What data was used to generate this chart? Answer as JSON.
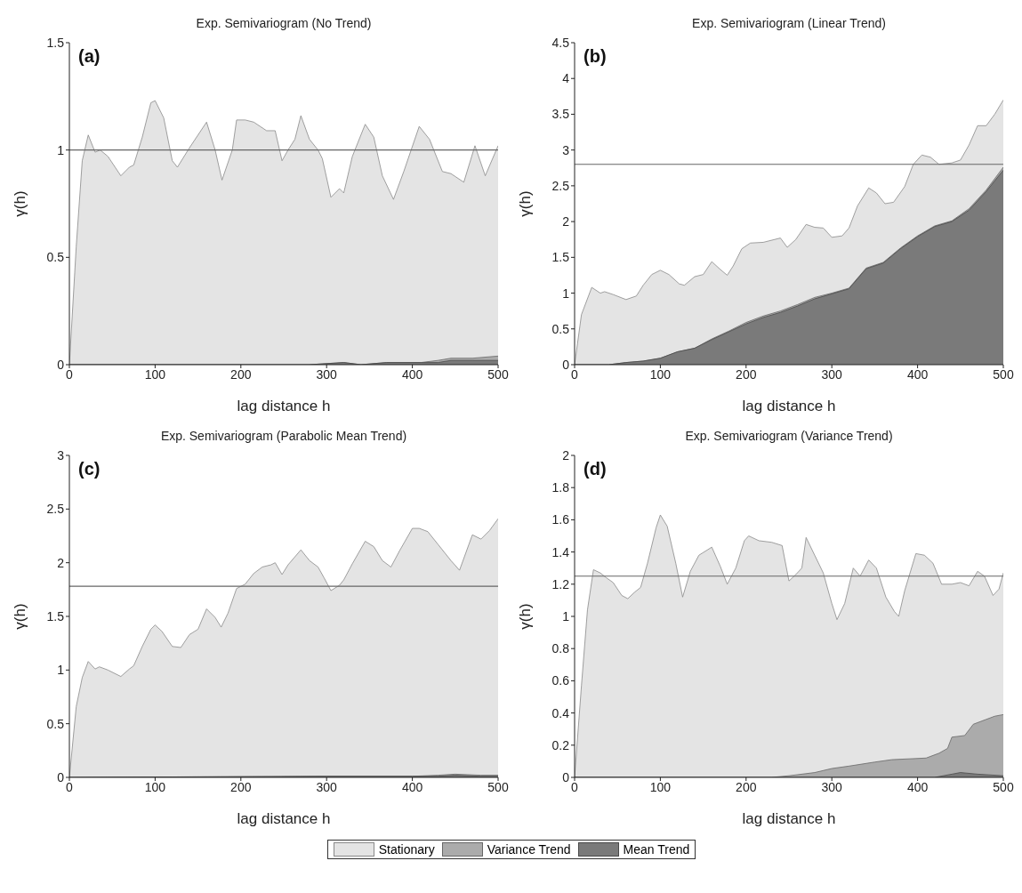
{
  "chart_data": [
    {
      "type": "area",
      "title": "Exp. Semivariogram (No Trend)",
      "xlabel": "lag distance h",
      "ylabel": "γ(h)",
      "annotations": [
        "(a)"
      ],
      "xlim": [
        0,
        500
      ],
      "xticks": [
        0,
        100,
        200,
        300,
        400,
        500
      ],
      "ylim": [
        0,
        1.5
      ],
      "yticks": [
        0,
        0.5,
        1,
        1.5
      ],
      "legend": "bottom",
      "marker": "none",
      "ref_lines": [
        {
          "axis": "y",
          "value": 1,
          "color": "#666666"
        }
      ],
      "series": [
        {
          "name": "Stationary",
          "color": "#e4e4e4",
          "x": [
            0,
            8,
            15,
            22,
            30,
            36,
            45,
            60,
            70,
            75,
            85,
            95,
            100,
            110,
            120,
            126,
            140,
            160,
            170,
            178,
            190,
            195,
            205,
            215,
            230,
            240,
            248,
            255,
            263,
            270,
            280,
            290,
            295,
            305,
            315,
            320,
            330,
            345,
            355,
            365,
            378,
            390,
            408,
            420,
            435,
            445,
            460,
            473,
            485,
            500
          ],
          "values": [
            0,
            0.55,
            0.95,
            1.07,
            0.99,
            1.0,
            0.97,
            0.88,
            0.92,
            0.93,
            1.06,
            1.22,
            1.23,
            1.15,
            0.95,
            0.92,
            1.01,
            1.13,
            1.0,
            0.86,
            1.0,
            1.14,
            1.14,
            1.13,
            1.09,
            1.09,
            0.95,
            1.0,
            1.05,
            1.16,
            1.05,
            1.0,
            0.96,
            0.78,
            0.82,
            0.8,
            0.97,
            1.12,
            1.06,
            0.88,
            0.77,
            0.9,
            1.11,
            1.05,
            0.9,
            0.89,
            0.85,
            1.02,
            0.88,
            1.02
          ]
        },
        {
          "name": "Variance Trend",
          "color": "#ababab",
          "x": [
            0,
            280,
            320,
            340,
            370,
            410,
            430,
            445,
            470,
            500
          ],
          "values": [
            0,
            0,
            0.01,
            0,
            0.01,
            0.01,
            0.02,
            0.03,
            0.03,
            0.04
          ]
        },
        {
          "name": "Mean Trend",
          "color": "#7a7a7a",
          "x": [
            0,
            280,
            320,
            340,
            370,
            410,
            430,
            445,
            470,
            500
          ],
          "values": [
            0,
            0,
            0.01,
            0,
            0.01,
            0.01,
            0.01,
            0.02,
            0.02,
            0.02
          ]
        }
      ]
    },
    {
      "type": "area",
      "title": "Exp. Semivariogram (Linear Trend)",
      "xlabel": "lag distance h",
      "ylabel": "γ(h)",
      "annotations": [
        "(b)"
      ],
      "xlim": [
        0,
        500
      ],
      "xticks": [
        0,
        100,
        200,
        300,
        400,
        500
      ],
      "ylim": [
        0,
        4.5
      ],
      "yticks": [
        0,
        0.5,
        1,
        1.5,
        2,
        2.5,
        3,
        3.5,
        4,
        4.5
      ],
      "legend": "bottom",
      "marker": "none",
      "ref_lines": [
        {
          "axis": "y",
          "value": 2.8,
          "color": "#666666"
        }
      ],
      "series": [
        {
          "name": "Stationary",
          "color": "#e4e4e4",
          "x": [
            0,
            8,
            20,
            30,
            35,
            45,
            60,
            72,
            80,
            90,
            100,
            110,
            122,
            128,
            140,
            150,
            160,
            170,
            178,
            185,
            195,
            205,
            220,
            240,
            248,
            258,
            270,
            280,
            290,
            300,
            312,
            320,
            330,
            343,
            352,
            362,
            372,
            385,
            395,
            405,
            415,
            425,
            440,
            450,
            460,
            470,
            480,
            490,
            500
          ],
          "values": [
            0,
            0.7,
            1.08,
            1.0,
            1.02,
            0.98,
            0.91,
            0.96,
            1.11,
            1.26,
            1.32,
            1.26,
            1.13,
            1.11,
            1.23,
            1.26,
            1.44,
            1.33,
            1.25,
            1.38,
            1.62,
            1.7,
            1.71,
            1.77,
            1.64,
            1.75,
            1.96,
            1.92,
            1.91,
            1.78,
            1.8,
            1.91,
            2.22,
            2.47,
            2.4,
            2.25,
            2.27,
            2.49,
            2.8,
            2.93,
            2.9,
            2.8,
            2.82,
            2.86,
            3.07,
            3.34,
            3.34,
            3.5,
            3.7
          ]
        },
        {
          "name": "Variance Trend",
          "color": "#ababab",
          "x": [
            0,
            40,
            60,
            80,
            100,
            120,
            140,
            160,
            180,
            200,
            220,
            240,
            260,
            280,
            300,
            320,
            340,
            360,
            380,
            400,
            420,
            440,
            460,
            480,
            500
          ],
          "values": [
            0,
            0,
            0.03,
            0.05,
            0.09,
            0.18,
            0.23,
            0.36,
            0.47,
            0.59,
            0.68,
            0.75,
            0.84,
            0.94,
            1.0,
            1.07,
            1.35,
            1.43,
            1.63,
            1.8,
            1.94,
            2.01,
            2.18,
            2.44,
            2.76
          ]
        },
        {
          "name": "Mean Trend",
          "color": "#7a7a7a",
          "x": [
            0,
            40,
            60,
            80,
            100,
            120,
            140,
            160,
            180,
            200,
            220,
            240,
            260,
            280,
            300,
            320,
            340,
            360,
            380,
            400,
            420,
            440,
            460,
            480,
            500
          ],
          "values": [
            0,
            0,
            0.03,
            0.05,
            0.09,
            0.18,
            0.23,
            0.35,
            0.46,
            0.57,
            0.66,
            0.73,
            0.82,
            0.92,
            0.99,
            1.06,
            1.34,
            1.42,
            1.62,
            1.79,
            1.93,
            2.0,
            2.16,
            2.42,
            2.72
          ]
        }
      ]
    },
    {
      "type": "area",
      "title": "Exp. Semivariogram (Parabolic Mean Trend)",
      "xlabel": "lag distance h",
      "ylabel": "γ(h)",
      "annotations": [
        "(c)"
      ],
      "xlim": [
        0,
        500
      ],
      "xticks": [
        0,
        100,
        200,
        300,
        400,
        500
      ],
      "ylim": [
        0,
        3
      ],
      "yticks": [
        0,
        0.5,
        1,
        1.5,
        2,
        2.5,
        3
      ],
      "legend": "bottom",
      "marker": "none",
      "ref_lines": [
        {
          "axis": "y",
          "value": 1.78,
          "color": "#666666"
        }
      ],
      "series": [
        {
          "name": "Stationary",
          "color": "#e4e4e4",
          "x": [
            0,
            8,
            15,
            22,
            30,
            35,
            45,
            60,
            70,
            75,
            85,
            95,
            100,
            108,
            120,
            130,
            140,
            150,
            160,
            170,
            177,
            185,
            195,
            205,
            215,
            225,
            235,
            240,
            248,
            255,
            270,
            280,
            290,
            297,
            305,
            315,
            320,
            330,
            345,
            355,
            365,
            375,
            385,
            400,
            408,
            418,
            430,
            445,
            455,
            470,
            480,
            490,
            500
          ],
          "values": [
            0,
            0.66,
            0.93,
            1.08,
            1.01,
            1.03,
            1.0,
            0.94,
            1.01,
            1.04,
            1.22,
            1.38,
            1.42,
            1.36,
            1.22,
            1.21,
            1.33,
            1.38,
            1.57,
            1.49,
            1.4,
            1.53,
            1.76,
            1.8,
            1.9,
            1.96,
            1.98,
            2.0,
            1.89,
            1.98,
            2.12,
            2.02,
            1.96,
            1.86,
            1.74,
            1.79,
            1.84,
            1.99,
            2.2,
            2.15,
            2.02,
            1.96,
            2.11,
            2.32,
            2.32,
            2.29,
            2.17,
            2.02,
            1.93,
            2.26,
            2.22,
            2.3,
            2.41
          ]
        },
        {
          "name": "Variance Trend",
          "color": "#ababab",
          "x": [
            0,
            300,
            400,
            430,
            450,
            480,
            500
          ],
          "values": [
            0,
            0.01,
            0.01,
            0.02,
            0.03,
            0.02,
            0.02
          ]
        },
        {
          "name": "Mean Trend",
          "color": "#7a7a7a",
          "x": [
            0,
            300,
            400,
            430,
            450,
            480,
            500
          ],
          "values": [
            0,
            0.01,
            0.01,
            0.01,
            0.02,
            0.01,
            0.01
          ]
        }
      ]
    },
    {
      "type": "area",
      "title": "Exp. Semivariogram (Variance Trend)",
      "xlabel": "lag distance h",
      "ylabel": "γ(h)",
      "annotations": [
        "(d)"
      ],
      "xlim": [
        0,
        500
      ],
      "xticks": [
        0,
        100,
        200,
        300,
        400,
        500
      ],
      "ylim": [
        0,
        2
      ],
      "yticks": [
        0,
        0.2,
        0.4,
        0.6,
        0.8,
        1,
        1.2,
        1.4,
        1.6,
        1.8,
        2
      ],
      "legend": "bottom",
      "marker": "none",
      "ref_lines": [
        {
          "axis": "y",
          "value": 1.25,
          "color": "#666666"
        }
      ],
      "series": [
        {
          "name": "Stationary",
          "color": "#e4e4e4",
          "x": [
            0,
            8,
            15,
            22,
            30,
            37,
            45,
            55,
            62,
            70,
            77,
            85,
            95,
            100,
            108,
            118,
            126,
            135,
            145,
            160,
            170,
            178,
            188,
            198,
            203,
            215,
            230,
            242,
            250,
            258,
            265,
            270,
            280,
            290,
            300,
            306,
            315,
            325,
            333,
            343,
            352,
            363,
            373,
            378,
            385,
            398,
            408,
            418,
            428,
            440,
            450,
            460,
            470,
            478,
            488,
            495,
            500
          ],
          "values": [
            0,
            0.57,
            1.04,
            1.29,
            1.27,
            1.24,
            1.21,
            1.13,
            1.11,
            1.15,
            1.18,
            1.33,
            1.55,
            1.63,
            1.56,
            1.33,
            1.12,
            1.28,
            1.38,
            1.43,
            1.31,
            1.2,
            1.3,
            1.47,
            1.5,
            1.47,
            1.46,
            1.44,
            1.22,
            1.26,
            1.3,
            1.49,
            1.38,
            1.27,
            1.08,
            0.98,
            1.08,
            1.3,
            1.25,
            1.35,
            1.3,
            1.12,
            1.03,
            1.0,
            1.16,
            1.39,
            1.38,
            1.33,
            1.2,
            1.2,
            1.21,
            1.19,
            1.28,
            1.25,
            1.13,
            1.17,
            1.27
          ]
        },
        {
          "name": "Variance Trend",
          "color": "#ababab",
          "x": [
            0,
            230,
            250,
            280,
            300,
            320,
            350,
            370,
            410,
            425,
            435,
            440,
            455,
            465,
            480,
            490,
            500
          ],
          "values": [
            0,
            0,
            0.01,
            0.03,
            0.055,
            0.07,
            0.095,
            0.11,
            0.12,
            0.15,
            0.18,
            0.25,
            0.26,
            0.33,
            0.36,
            0.38,
            0.39
          ]
        },
        {
          "name": "Mean Trend",
          "color": "#7a7a7a",
          "x": [
            0,
            420,
            440,
            450,
            470,
            500
          ],
          "values": [
            0,
            0,
            0.02,
            0.03,
            0.02,
            0.01
          ]
        }
      ]
    }
  ]
}
